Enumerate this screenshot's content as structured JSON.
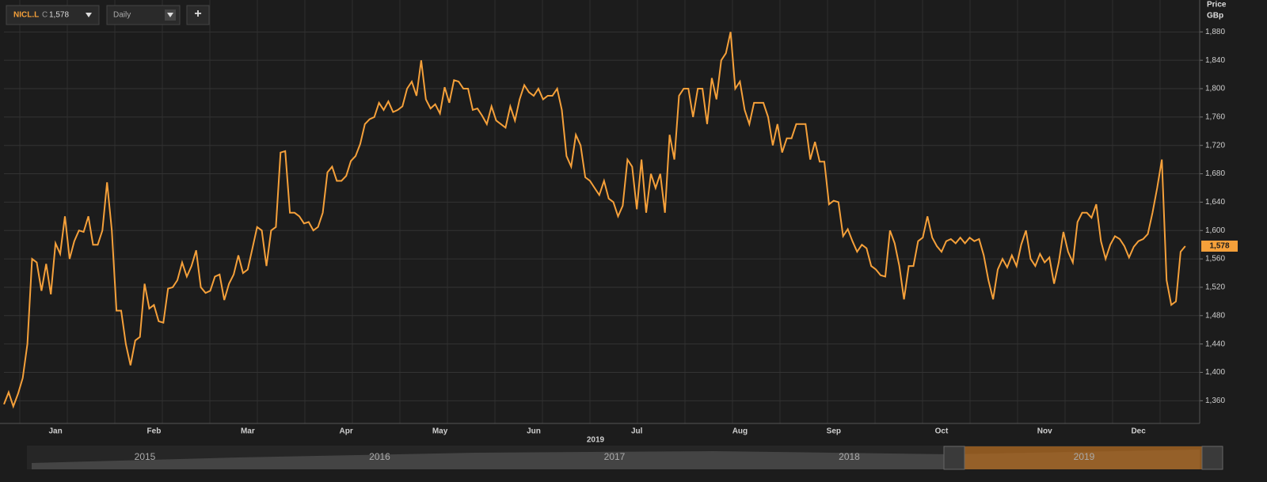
{
  "header": {
    "ticker": "NICL.L",
    "close_prefix": "C",
    "close": "1,578",
    "interval": "Daily",
    "add_button": "+"
  },
  "chart_data": {
    "type": "line",
    "y_axis_title": "Price",
    "y_axis_unit": "GBp",
    "x_axis_year": "2019",
    "color": "#f5a03a",
    "categories": [
      null,
      null,
      null,
      null,
      null,
      null,
      null,
      null,
      null,
      null,
      null,
      "Jan",
      null,
      null,
      null,
      null,
      null,
      null,
      null,
      null,
      null,
      null,
      null,
      null,
      null,
      null,
      null,
      null,
      null,
      null,
      null,
      null,
      "Feb",
      null,
      null,
      null,
      null,
      null,
      null,
      null,
      null,
      null,
      null,
      null,
      null,
      null,
      null,
      null,
      null,
      null,
      null,
      null,
      "Mar",
      null,
      null,
      null,
      null,
      null,
      null,
      null,
      null,
      null,
      null,
      null,
      null,
      null,
      null,
      null,
      null,
      null,
      null,
      null,
      null,
      "Apr",
      null,
      null,
      null,
      null,
      null,
      null,
      null,
      null,
      null,
      null,
      null,
      null,
      null,
      null,
      null,
      null,
      null,
      null,
      null,
      "May",
      null,
      null,
      null,
      null,
      null,
      null,
      null,
      null,
      null,
      null,
      null,
      null,
      null,
      null,
      null,
      null,
      null,
      null,
      null,
      "Jun",
      null,
      null,
      null,
      null,
      null,
      null,
      null,
      null,
      null,
      null,
      null,
      null,
      null,
      null,
      null,
      null,
      null,
      null,
      null,
      null,
      null,
      "Jul",
      null,
      null,
      null,
      null,
      null,
      null,
      null,
      null,
      null,
      null,
      null,
      null,
      null,
      null,
      null,
      null,
      null,
      null,
      null,
      null,
      null,
      "Aug",
      null,
      null,
      null,
      null,
      null,
      null,
      null,
      null,
      null,
      null,
      null,
      null,
      null,
      null,
      null,
      null,
      null,
      null,
      null,
      "Sep",
      null,
      null,
      null,
      null,
      null,
      null,
      null,
      null,
      null,
      null,
      null,
      null,
      null,
      null,
      null,
      null,
      null,
      null,
      null,
      null,
      null,
      null,
      "Oct",
      null,
      null,
      null,
      null,
      null,
      null,
      null,
      null,
      null,
      null,
      null,
      null,
      null,
      null,
      null,
      null,
      null,
      null,
      null,
      null,
      null,
      "Nov",
      null,
      null,
      null,
      null,
      null,
      null,
      null,
      null,
      null,
      null,
      null,
      null,
      null,
      null,
      null,
      null,
      null,
      null,
      null,
      "Dec",
      null,
      null,
      null,
      null,
      null,
      null,
      null,
      null,
      null,
      null
    ],
    "values": [
      1355,
      1372,
      1352,
      1370,
      1392,
      1440,
      1560,
      1555,
      1515,
      1553,
      1510,
      1582,
      1567,
      1620,
      1560,
      1585,
      1600,
      1598,
      1620,
      1580,
      1580,
      1600,
      1668,
      1600,
      1487,
      1487,
      1440,
      1410,
      1445,
      1450,
      1525,
      1490,
      1495,
      1472,
      1470,
      1518,
      1520,
      1530,
      1555,
      1535,
      1550,
      1572,
      1520,
      1512,
      1515,
      1535,
      1538,
      1502,
      1525,
      1538,
      1565,
      1540,
      1545,
      1575,
      1605,
      1600,
      1550,
      1600,
      1605,
      1710,
      1712,
      1625,
      1625,
      1620,
      1610,
      1612,
      1600,
      1605,
      1625,
      1682,
      1690,
      1670,
      1670,
      1677,
      1698,
      1705,
      1722,
      1750,
      1757,
      1760,
      1780,
      1770,
      1782,
      1767,
      1770,
      1775,
      1800,
      1810,
      1790,
      1840,
      1785,
      1772,
      1778,
      1765,
      1802,
      1780,
      1812,
      1810,
      1800,
      1800,
      1770,
      1772,
      1762,
      1750,
      1775,
      1755,
      1750,
      1745,
      1775,
      1755,
      1785,
      1805,
      1795,
      1790,
      1800,
      1785,
      1790,
      1790,
      1800,
      1770,
      1705,
      1690,
      1735,
      1720,
      1675,
      1670,
      1660,
      1650,
      1670,
      1645,
      1640,
      1620,
      1635,
      1700,
      1690,
      1630,
      1700,
      1625,
      1680,
      1660,
      1680,
      1625,
      1735,
      1700,
      1790,
      1800,
      1800,
      1760,
      1800,
      1800,
      1750,
      1815,
      1785,
      1840,
      1850,
      1880,
      1800,
      1810,
      1770,
      1750,
      1780,
      1780,
      1780,
      1760,
      1720,
      1750,
      1710,
      1730,
      1730,
      1750,
      1750,
      1750,
      1700,
      1725,
      1697,
      1697,
      1637,
      1642,
      1640,
      1592,
      1602,
      1585,
      1570,
      1580,
      1575,
      1550,
      1545,
      1537,
      1535,
      1600,
      1582,
      1550,
      1503,
      1550,
      1550,
      1585,
      1590,
      1620,
      1590,
      1578,
      1570,
      1585,
      1588,
      1582,
      1590,
      1582,
      1590,
      1585,
      1588,
      1565,
      1530,
      1503,
      1545,
      1560,
      1548,
      1565,
      1550,
      1580,
      1600,
      1560,
      1550,
      1567,
      1555,
      1562,
      1525,
      1555,
      1598,
      1570,
      1555,
      1612,
      1625,
      1625,
      1618,
      1637,
      1585,
      1560,
      1580,
      1592,
      1588,
      1578,
      1562,
      1577,
      1585,
      1588,
      1595,
      1625,
      1660,
      1700,
      1530,
      1495,
      1500,
      1570,
      1578
    ],
    "last_label": "1,578",
    "ylim": [
      1328,
      1925
    ],
    "yticks": [
      {
        "value": 1360,
        "label": "1,360"
      },
      {
        "value": 1400,
        "label": "1,400"
      },
      {
        "value": 1440,
        "label": "1,440"
      },
      {
        "value": 1480,
        "label": "1,480"
      },
      {
        "value": 1520,
        "label": "1,520"
      },
      {
        "value": 1560,
        "label": "1,560"
      },
      {
        "value": 1600,
        "label": "1,600"
      },
      {
        "value": 1640,
        "label": "1,640"
      },
      {
        "value": 1680,
        "label": "1,680"
      },
      {
        "value": 1720,
        "label": "1,720"
      },
      {
        "value": 1760,
        "label": "1,760"
      },
      {
        "value": 1800,
        "label": "1,800"
      },
      {
        "value": 1840,
        "label": "1,840"
      },
      {
        "value": 1880,
        "label": "1,880"
      }
    ],
    "grid": true,
    "navigator_years": [
      "2015",
      "2016",
      "2017",
      "2018",
      "2019"
    ]
  }
}
